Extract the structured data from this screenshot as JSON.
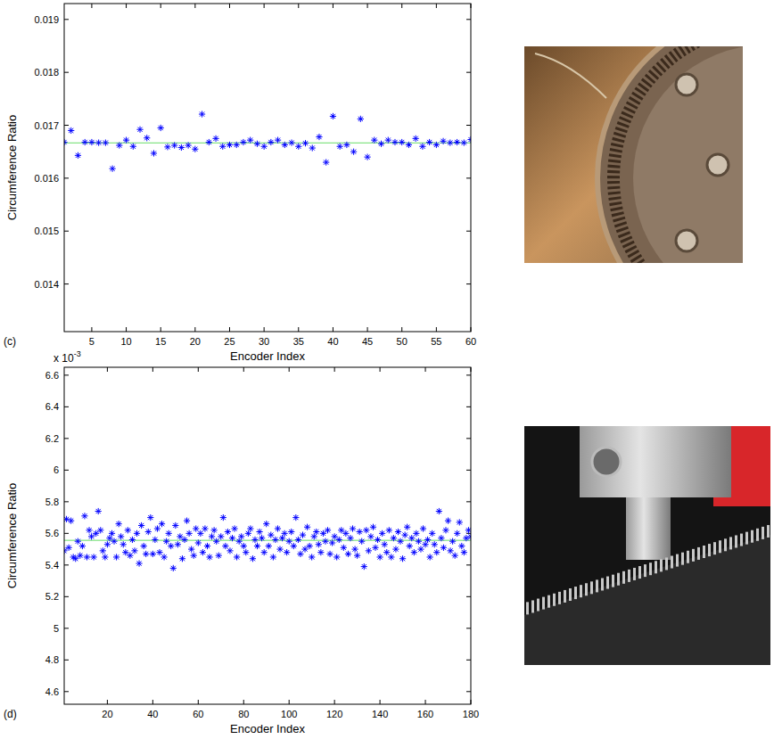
{
  "chart_data": [
    {
      "type": "scatter",
      "panel_label": "(c)",
      "x_label": "Encoder Index",
      "y_label": "Circumference Ratio",
      "xlim": [
        1,
        60
      ],
      "xticks": [
        5,
        10,
        15,
        20,
        25,
        30,
        35,
        40,
        45,
        50,
        55,
        60
      ],
      "ylim": [
        0.0131,
        0.0193
      ],
      "yticks": [
        0.014,
        0.015,
        0.016,
        0.017,
        0.018,
        0.019
      ],
      "x": [
        1,
        2,
        3,
        4,
        5,
        6,
        7,
        8,
        9,
        10,
        11,
        12,
        13,
        14,
        15,
        16,
        17,
        18,
        19,
        20,
        21,
        22,
        23,
        24,
        25,
        26,
        27,
        28,
        29,
        30,
        31,
        32,
        33,
        34,
        35,
        36,
        37,
        38,
        39,
        40,
        41,
        42,
        43,
        44,
        45,
        46,
        47,
        48,
        49,
        50,
        51,
        52,
        53,
        54,
        55,
        56,
        57,
        58,
        59,
        60
      ],
      "series": [
        {
          "color": "#0000ff",
          "marker": "asterisk",
          "values": [
            0.01668,
            0.0169,
            0.01643,
            0.01668,
            0.01668,
            0.01667,
            0.01667,
            0.01618,
            0.01662,
            0.01672,
            0.0166,
            0.01692,
            0.01676,
            0.01647,
            0.01695,
            0.01659,
            0.01662,
            0.01658,
            0.01662,
            0.01655,
            0.01721,
            0.01668,
            0.01675,
            0.0166,
            0.01663,
            0.01663,
            0.01668,
            0.01672,
            0.01665,
            0.0166,
            0.01668,
            0.01672,
            0.01663,
            0.01667,
            0.0166,
            0.01666,
            0.01657,
            0.01678,
            0.0163,
            0.01717,
            0.0166,
            0.01663,
            0.0165,
            0.01712,
            0.0164,
            0.01672,
            0.01665,
            0.01672,
            0.01668,
            0.01668,
            0.01663,
            0.01675,
            0.0166,
            0.01668,
            0.01663,
            0.0167,
            0.01667,
            0.01668,
            0.01667,
            0.01673
          ]
        }
      ],
      "reference_line": {
        "value": 0.016667,
        "color": "#66dd66"
      }
    },
    {
      "type": "scatter",
      "panel_label": "(d)",
      "x_label": "Encoder Index",
      "y_label": "Circumference Ratio",
      "y_offset_text": "x 10",
      "y_offset_exponent": "-3",
      "xlim": [
        1,
        180
      ],
      "xticks": [
        20,
        40,
        60,
        80,
        100,
        120,
        140,
        160,
        180
      ],
      "ylim": [
        0.00452,
        0.00665
      ],
      "yticks": [
        {
          "value": 0.0046,
          "label": "4.6"
        },
        {
          "value": 0.0048,
          "label": "4.8"
        },
        {
          "value": 0.005,
          "label": "5"
        },
        {
          "value": 0.0052,
          "label": "5.2"
        },
        {
          "value": 0.0054,
          "label": "5.4"
        },
        {
          "value": 0.0056,
          "label": "5.6"
        },
        {
          "value": 0.0058,
          "label": "5.8"
        },
        {
          "value": 0.006,
          "label": "6"
        },
        {
          "value": 0.0062,
          "label": "6.2"
        },
        {
          "value": 0.0064,
          "label": "6.4"
        },
        {
          "value": 0.0066,
          "label": "6.6"
        }
      ],
      "x": [
        1,
        2,
        3,
        4,
        5,
        6,
        7,
        8,
        9,
        10,
        11,
        12,
        13,
        14,
        15,
        16,
        17,
        18,
        19,
        20,
        21,
        22,
        23,
        24,
        25,
        26,
        27,
        28,
        29,
        30,
        31,
        32,
        33,
        34,
        35,
        36,
        37,
        38,
        39,
        40,
        41,
        42,
        43,
        44,
        45,
        46,
        47,
        48,
        49,
        50,
        51,
        52,
        53,
        54,
        55,
        56,
        57,
        58,
        59,
        60,
        61,
        62,
        63,
        64,
        65,
        66,
        67,
        68,
        69,
        70,
        71,
        72,
        73,
        74,
        75,
        76,
        77,
        78,
        79,
        80,
        81,
        82,
        83,
        84,
        85,
        86,
        87,
        88,
        89,
        90,
        91,
        92,
        93,
        94,
        95,
        96,
        97,
        98,
        99,
        100,
        101,
        102,
        103,
        104,
        105,
        106,
        107,
        108,
        109,
        110,
        111,
        112,
        113,
        114,
        115,
        116,
        117,
        118,
        119,
        120,
        121,
        122,
        123,
        124,
        125,
        126,
        127,
        128,
        129,
        130,
        131,
        132,
        133,
        134,
        135,
        136,
        137,
        138,
        139,
        140,
        141,
        142,
        143,
        144,
        145,
        146,
        147,
        148,
        149,
        150,
        151,
        152,
        153,
        154,
        155,
        156,
        157,
        158,
        159,
        160,
        161,
        162,
        163,
        164,
        165,
        166,
        167,
        168,
        169,
        170,
        171,
        172,
        173,
        174,
        175,
        176,
        177,
        178,
        179,
        180
      ],
      "series": [
        {
          "color": "#0000ff",
          "marker": "asterisk",
          "values": [
            0.00549,
            0.00569,
            0.00551,
            0.00568,
            0.00545,
            0.00544,
            0.00555,
            0.00546,
            0.00552,
            0.00571,
            0.00545,
            0.00562,
            0.00558,
            0.00545,
            0.0056,
            0.00574,
            0.00562,
            0.00549,
            0.00545,
            0.00553,
            0.00557,
            0.0056,
            0.00555,
            0.00545,
            0.00566,
            0.00558,
            0.00553,
            0.00548,
            0.00562,
            0.00546,
            0.00556,
            0.00549,
            0.0056,
            0.00541,
            0.00565,
            0.00552,
            0.00547,
            0.00561,
            0.0057,
            0.00547,
            0.00556,
            0.00563,
            0.00548,
            0.00566,
            0.00545,
            0.00555,
            0.0056,
            0.00552,
            0.00538,
            0.00565,
            0.00553,
            0.00558,
            0.00544,
            0.00556,
            0.00568,
            0.0056,
            0.0055,
            0.00546,
            0.00563,
            0.00554,
            0.0056,
            0.00548,
            0.00563,
            0.00552,
            0.00545,
            0.00558,
            0.00562,
            0.00555,
            0.00546,
            0.00558,
            0.0057,
            0.00552,
            0.00561,
            0.00549,
            0.00557,
            0.00563,
            0.00545,
            0.00555,
            0.00558,
            0.00552,
            0.00548,
            0.0056,
            0.00563,
            0.00544,
            0.00556,
            0.00552,
            0.00561,
            0.00557,
            0.00548,
            0.00566,
            0.00552,
            0.00559,
            0.00545,
            0.00556,
            0.00563,
            0.0055,
            0.00557,
            0.0056,
            0.00548,
            0.00555,
            0.00561,
            0.00552,
            0.0057,
            0.00556,
            0.00547,
            0.00559,
            0.0055,
            0.00564,
            0.00552,
            0.00545,
            0.00558,
            0.00561,
            0.00553,
            0.00548,
            0.0056,
            0.00555,
            0.00562,
            0.00547,
            0.00554,
            0.00558,
            0.00545,
            0.00556,
            0.00562,
            0.00551,
            0.0056,
            0.00547,
            0.00557,
            0.00563,
            0.0055,
            0.00546,
            0.00561,
            0.00555,
            0.00539,
            0.00562,
            0.00549,
            0.00558,
            0.00564,
            0.00551,
            0.00556,
            0.00545,
            0.0056,
            0.00553,
            0.00548,
            0.00562,
            0.00545,
            0.00557,
            0.0055,
            0.00561,
            0.00555,
            0.00544,
            0.00559,
            0.00564,
            0.00552,
            0.00557,
            0.00548,
            0.0056,
            0.00555,
            0.0055,
            0.00563,
            0.00553,
            0.00556,
            0.00545,
            0.0056,
            0.00553,
            0.00548,
            0.00574,
            0.00557,
            0.00551,
            0.00562,
            0.00568,
            0.00549,
            0.00555,
            0.00546,
            0.0056,
            0.00567,
            0.00552,
            0.00548,
            0.00557,
            0.00562,
            0.00558
          ]
        }
      ],
      "reference_line": {
        "value": 0.005556,
        "color": "#66dd66"
      }
    }
  ]
}
